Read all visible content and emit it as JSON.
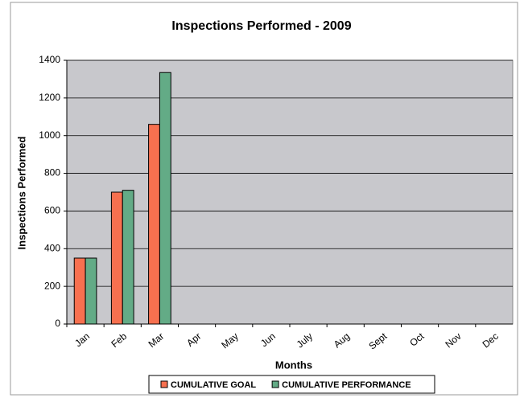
{
  "chart_data": {
    "type": "bar",
    "title": "Inspections Performed - 2009",
    "x_label": "Months",
    "y_label": "Inspections Performed",
    "categories": [
      "Jan",
      "Feb",
      "Mar",
      "Apr",
      "May",
      "Jun",
      "July",
      "Aug",
      "Sept",
      "Oct",
      "Nov",
      "Dec"
    ],
    "series": [
      {
        "name": "CUMULATIVE GOAL",
        "color": "#f7704f",
        "values": [
          350,
          700,
          1060,
          null,
          null,
          null,
          null,
          null,
          null,
          null,
          null,
          null
        ]
      },
      {
        "name": "CUMULATIVE PERFORMANCE",
        "color": "#63ab86",
        "values": [
          350,
          710,
          1335,
          null,
          null,
          null,
          null,
          null,
          null,
          null,
          null,
          null
        ]
      }
    ],
    "ylim": [
      0,
      1400
    ],
    "yticks": [
      0,
      200,
      400,
      600,
      800,
      1000,
      1200,
      1400
    ],
    "grid": true,
    "legend": "bottom"
  }
}
